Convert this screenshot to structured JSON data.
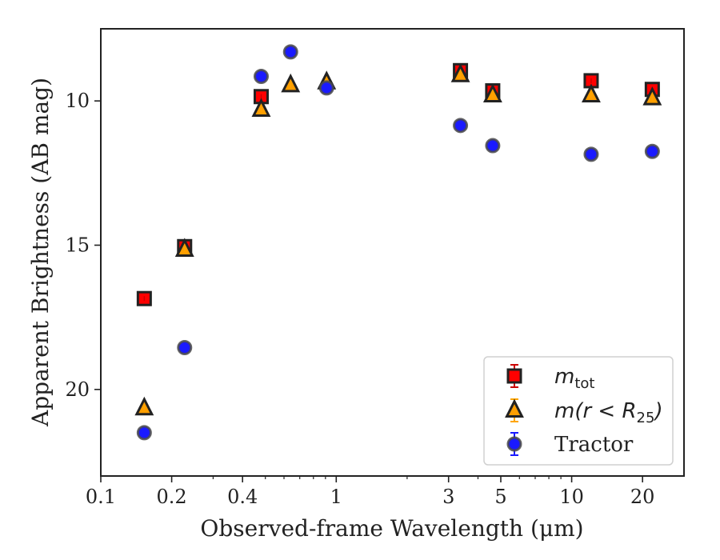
{
  "chart_data": {
    "type": "scatter",
    "xlabel": "Observed-frame Wavelength (μm)",
    "ylabel": "Apparent Brightness (AB mag)",
    "xscale": "log",
    "xlim": [
      0.1,
      30
    ],
    "ylim": [
      23,
      7.5
    ],
    "y_inverted": true,
    "x_ticks": [
      {
        "value": 0.1,
        "label": "0.1"
      },
      {
        "value": 0.2,
        "label": "0.2"
      },
      {
        "value": 0.4,
        "label": "0.4"
      },
      {
        "value": 1,
        "label": "1"
      },
      {
        "value": 3,
        "label": "3"
      },
      {
        "value": 5,
        "label": "5"
      },
      {
        "value": 10,
        "label": "10"
      },
      {
        "value": 20,
        "label": "20"
      }
    ],
    "y_ticks": [
      {
        "value": 10,
        "label": "10"
      },
      {
        "value": 15,
        "label": "15"
      },
      {
        "value": 20,
        "label": "20"
      }
    ],
    "grid": false,
    "legend_position": "lower-right",
    "series": [
      {
        "name": "m_tot",
        "marker": "square",
        "color": "#ff0000",
        "edge_color": "#222222",
        "errorbar_color": "#cc0000",
        "x": [
          0.153,
          0.227,
          0.48,
          3.37,
          4.62,
          12.1,
          22.0
        ],
        "y": [
          16.85,
          15.05,
          9.85,
          8.95,
          9.65,
          9.3,
          9.6
        ]
      },
      {
        "name": "m(r < R25)",
        "marker": "triangle",
        "color": "#ff9f00",
        "edge_color": "#222222",
        "errorbar_color": "#ffa500",
        "x": [
          0.153,
          0.227,
          0.48,
          0.64,
          0.91,
          3.37,
          4.62,
          12.1,
          22.0
        ],
        "y": [
          20.65,
          15.15,
          10.3,
          9.45,
          9.35,
          9.1,
          9.8,
          9.8,
          9.9
        ]
      },
      {
        "name": "Tractor",
        "marker": "circle",
        "color": "#1a1aff",
        "edge_color": "#4a4a4a",
        "errorbar_color": "#1a1aff",
        "x": [
          0.153,
          0.227,
          0.48,
          0.64,
          0.91,
          3.37,
          4.62,
          12.1,
          22.0
        ],
        "y": [
          21.5,
          18.55,
          9.15,
          8.3,
          9.55,
          10.85,
          11.55,
          11.85,
          11.75
        ]
      }
    ],
    "legend": {
      "entries": [
        {
          "label_main": "m",
          "label_sub": "tot"
        },
        {
          "label_main": "m(r < R",
          "label_sub": "25",
          "label_tail": ")"
        },
        {
          "label_main": "Tractor",
          "label_sub": "",
          "label_tail": ""
        }
      ]
    }
  }
}
